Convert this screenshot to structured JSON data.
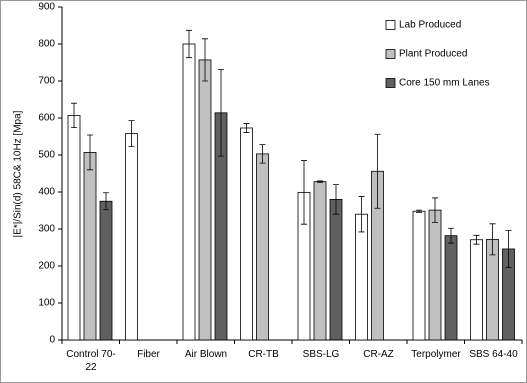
{
  "chart_data": {
    "type": "bar",
    "y_label": "|E*|/Sin(d) 58C& 10Hz [Mpa]",
    "categories": [
      "Control 70-22",
      "Fiber",
      "Air Blown",
      "CR-TB",
      "SBS-LG",
      "CR-AZ",
      "Terpolymer",
      "SBS 64-40"
    ],
    "series": [
      {
        "name": "Lab Produced",
        "color": "#ffffff",
        "values": [
          607,
          558,
          800,
          573,
          399,
          340,
          348,
          271
        ],
        "errors": [
          33,
          35,
          37,
          12,
          86,
          48,
          3,
          12
        ]
      },
      {
        "name": "Plant Produced",
        "color": "#c0c0c0",
        "values": [
          507,
          null,
          757,
          503,
          428,
          456,
          351,
          272
        ],
        "errors": [
          47,
          null,
          57,
          25,
          2,
          100,
          33,
          42
        ]
      },
      {
        "name": "Core 150 mm Lanes",
        "color": "#606060",
        "values": [
          375,
          null,
          614,
          null,
          380,
          null,
          282,
          246
        ],
        "errors": [
          23,
          null,
          117,
          null,
          40,
          null,
          20,
          50
        ]
      }
    ],
    "ylim": [
      0,
      900
    ],
    "yticks": [
      0,
      100,
      200,
      300,
      400,
      500,
      600,
      700,
      800,
      900
    ],
    "legend": "top-right"
  }
}
